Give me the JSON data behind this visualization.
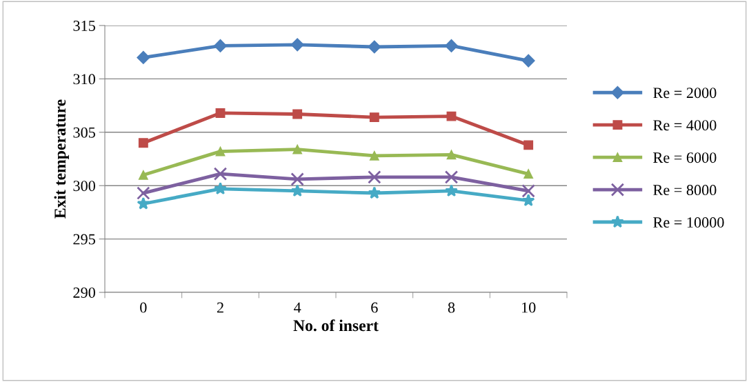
{
  "chart_data": {
    "type": "line",
    "xlabel": "No. of insert",
    "ylabel": "Exit temperature",
    "categories": [
      "0",
      "2",
      "4",
      "6",
      "8",
      "10"
    ],
    "series": [
      {
        "name": "Re = 2000",
        "color": "#4a7ebb",
        "marker": "diamond",
        "values": [
          312.0,
          313.1,
          313.2,
          313.0,
          313.1,
          311.7
        ]
      },
      {
        "name": "Re = 4000",
        "color": "#be4b48",
        "marker": "square",
        "values": [
          304.0,
          306.8,
          306.7,
          306.4,
          306.5,
          303.8
        ]
      },
      {
        "name": "Re = 6000",
        "color": "#98b954",
        "marker": "triangle",
        "values": [
          301.0,
          303.2,
          303.4,
          302.8,
          302.9,
          301.1
        ]
      },
      {
        "name": "Re = 8000",
        "color": "#7d60a0",
        "marker": "cross",
        "values": [
          299.3,
          301.1,
          300.6,
          300.8,
          300.8,
          299.5
        ]
      },
      {
        "name": "Re = 10000",
        "color": "#46aac5",
        "marker": "star",
        "values": [
          298.3,
          299.7,
          299.5,
          299.3,
          299.5,
          298.6
        ]
      }
    ],
    "ylim": [
      290,
      315
    ],
    "yticks": [
      290,
      295,
      300,
      305,
      310,
      315
    ],
    "grid": "y",
    "legend": "right",
    "line_style": "solid"
  }
}
